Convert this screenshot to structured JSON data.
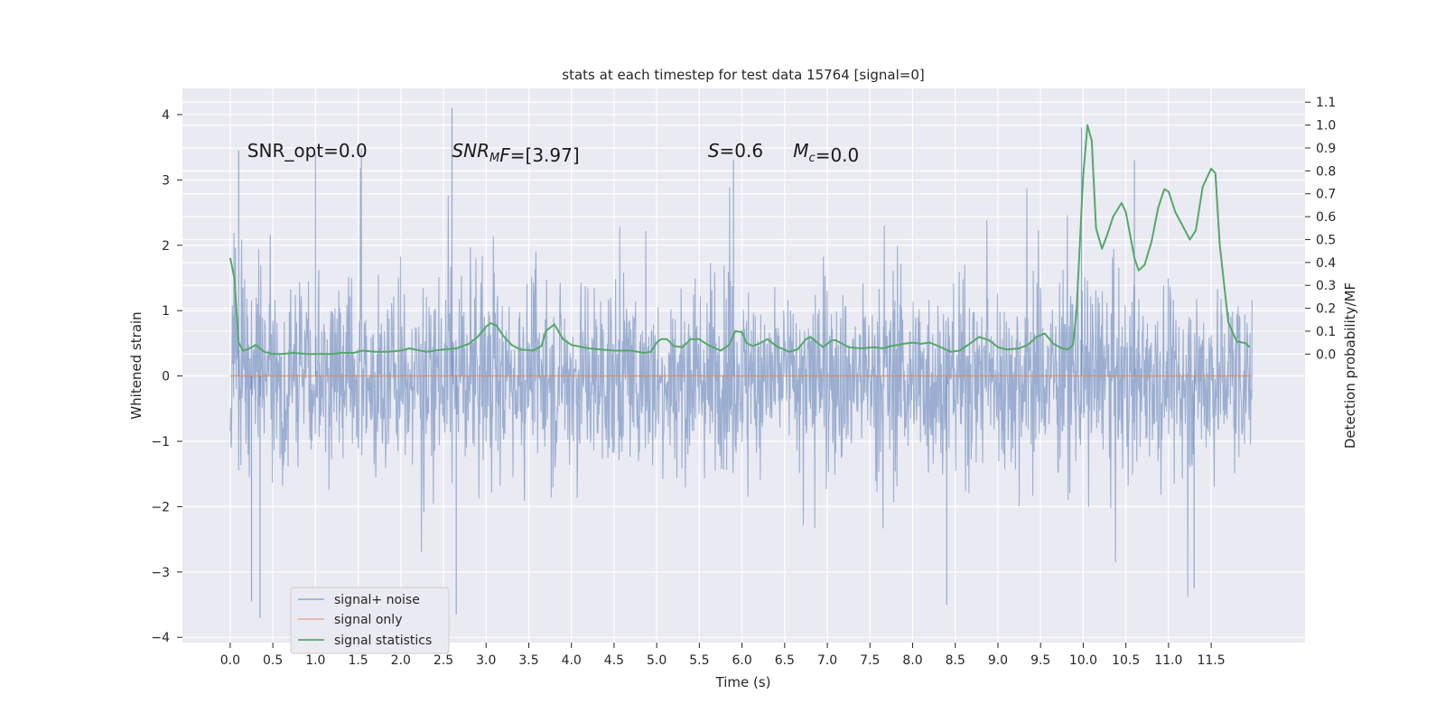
{
  "chart_data": {
    "type": "line",
    "title": "stats at each timestep for test data 15764 [signal=0]",
    "xlabel": "Time (s)",
    "ylabel": "Whitened strain",
    "ylabel_right": "Detection probability/MF",
    "xlim": [
      -0.56,
      12.6
    ],
    "ylim": [
      -4.08,
      4.4
    ],
    "ylim_right": [
      -1.26,
      1.16
    ],
    "x_ticks": [
      0.0,
      0.5,
      1.0,
      1.5,
      2.0,
      2.5,
      3.0,
      3.5,
      4.0,
      4.5,
      5.0,
      5.5,
      6.0,
      6.5,
      7.0,
      7.5,
      8.0,
      8.5,
      9.0,
      9.5,
      10.0,
      10.5,
      11.0,
      11.5
    ],
    "x_tick_labels": [
      "0.0",
      "0.5",
      "1.0",
      "1.5",
      "2.0",
      "2.5",
      "3.0",
      "3.5",
      "4.0",
      "4.5",
      "5.0",
      "5.5",
      "6.0",
      "6.5",
      "7.0",
      "7.5",
      "8.0",
      "8.5",
      "9.0",
      "9.5",
      "10.0",
      "10.5",
      "11.0",
      "11.5"
    ],
    "y_ticks": [
      -4,
      -3,
      -2,
      -1,
      0,
      1,
      2,
      3,
      4
    ],
    "y_tick_labels": [
      "−4",
      "−3",
      "−2",
      "−1",
      "0",
      "1",
      "2",
      "3",
      "4"
    ],
    "y_right_ticks": [
      0.0,
      0.1,
      0.2,
      0.3,
      0.4,
      0.5,
      0.6,
      0.7,
      0.8,
      0.9,
      1.0,
      1.1
    ],
    "y_right_tick_labels": [
      "0.0",
      "0.1",
      "0.2",
      "0.3",
      "0.4",
      "0.5",
      "0.6",
      "0.7",
      "0.8",
      "0.9",
      "1.0",
      "1.1"
    ],
    "grid": true,
    "legend_position": "lower-left",
    "series": [
      {
        "name": "signal+ noise",
        "color": "#4c72b0",
        "axis": "left",
        "description_range": [
          -3.7,
          4.1
        ],
        "notable_spikes": [
          {
            "x": 0.1,
            "y": 3.45
          },
          {
            "x": 1.0,
            "y": 3.4
          },
          {
            "x": 2.6,
            "y": 4.1
          },
          {
            "x": 5.9,
            "y": 3.3
          },
          {
            "x": 9.98,
            "y": 3.8
          },
          {
            "x": 10.6,
            "y": 3.3
          },
          {
            "x": 0.25,
            "y": -3.45
          },
          {
            "x": 0.35,
            "y": -3.7
          },
          {
            "x": 2.65,
            "y": -3.65
          },
          {
            "x": 8.4,
            "y": -3.5
          },
          {
            "x": 11.3,
            "y": -3.25
          }
        ]
      },
      {
        "name": "signal only",
        "color": "#dd8452",
        "axis": "left",
        "x": [
          0.0,
          11.98
        ],
        "y": [
          0.0,
          0.0
        ]
      },
      {
        "name": "signal statistics",
        "color": "#55a868",
        "axis": "right",
        "x": [
          0.0,
          0.05,
          0.1,
          0.15,
          0.2,
          0.3,
          0.4,
          0.5,
          0.6,
          0.75,
          0.9,
          1.0,
          1.2,
          1.3,
          1.45,
          1.55,
          1.7,
          1.85,
          2.0,
          2.1,
          2.3,
          2.5,
          2.65,
          2.8,
          2.9,
          3.0,
          3.05,
          3.12,
          3.2,
          3.3,
          3.4,
          3.55,
          3.65,
          3.7,
          3.8,
          3.9,
          4.0,
          4.2,
          4.5,
          4.7,
          4.85,
          4.93,
          5.0,
          5.05,
          5.12,
          5.2,
          5.3,
          5.4,
          5.5,
          5.6,
          5.75,
          5.85,
          5.92,
          6.0,
          6.05,
          6.12,
          6.2,
          6.3,
          6.4,
          6.55,
          6.65,
          6.75,
          6.8,
          6.95,
          7.05,
          7.1,
          7.25,
          7.4,
          7.55,
          7.65,
          7.75,
          7.9,
          8.0,
          8.1,
          8.2,
          8.3,
          8.45,
          8.55,
          8.65,
          8.78,
          8.9,
          9.0,
          9.1,
          9.25,
          9.35,
          9.45,
          9.55,
          9.65,
          9.75,
          9.82,
          9.88,
          9.92,
          10.0,
          10.05,
          10.1,
          10.15,
          10.22,
          10.28,
          10.35,
          10.45,
          10.5,
          10.6,
          10.65,
          10.72,
          10.8,
          10.88,
          10.95,
          11.0,
          11.08,
          11.18,
          11.25,
          11.32,
          11.4,
          11.5,
          11.55,
          11.6,
          11.7,
          11.8,
          11.9,
          11.95
        ],
        "y": [
          0.42,
          0.33,
          0.05,
          0.015,
          0.02,
          0.04,
          0.01,
          0.0,
          0.0,
          0.005,
          0.0,
          0.0,
          0.0,
          0.005,
          0.005,
          0.015,
          0.01,
          0.01,
          0.015,
          0.025,
          0.01,
          0.02,
          0.025,
          0.045,
          0.075,
          0.12,
          0.135,
          0.125,
          0.08,
          0.04,
          0.02,
          0.015,
          0.035,
          0.1,
          0.13,
          0.065,
          0.04,
          0.025,
          0.015,
          0.015,
          0.005,
          0.01,
          0.05,
          0.065,
          0.065,
          0.035,
          0.03,
          0.065,
          0.065,
          0.04,
          0.015,
          0.04,
          0.1,
          0.095,
          0.05,
          0.035,
          0.045,
          0.065,
          0.035,
          0.01,
          0.02,
          0.065,
          0.075,
          0.03,
          0.06,
          0.06,
          0.03,
          0.025,
          0.03,
          0.025,
          0.035,
          0.045,
          0.05,
          0.045,
          0.05,
          0.035,
          0.01,
          0.015,
          0.04,
          0.075,
          0.06,
          0.03,
          0.02,
          0.025,
          0.04,
          0.075,
          0.09,
          0.045,
          0.025,
          0.02,
          0.04,
          0.18,
          0.78,
          1.0,
          0.93,
          0.55,
          0.46,
          0.52,
          0.6,
          0.66,
          0.62,
          0.42,
          0.365,
          0.39,
          0.49,
          0.64,
          0.72,
          0.71,
          0.62,
          0.55,
          0.5,
          0.54,
          0.73,
          0.81,
          0.79,
          0.48,
          0.14,
          0.055,
          0.048,
          0.03
        ]
      }
    ],
    "annotations": [
      {
        "id": "snr_opt",
        "x": 0.2,
        "y": 3.35,
        "parts": [
          {
            "text": "SNR_opt=0.0",
            "italic": false
          }
        ]
      },
      {
        "id": "snr_mf",
        "x": 2.6,
        "y": 3.35,
        "parts": [
          {
            "text": "SNR",
            "italic": true
          },
          {
            "text": "M",
            "italic": true,
            "sub": true
          },
          {
            "text": "F",
            "italic": true
          },
          {
            "text": "=[3.97]",
            "italic": false
          }
        ]
      },
      {
        "id": "s",
        "x": 5.6,
        "y": 3.35,
        "parts": [
          {
            "text": "S",
            "italic": true
          },
          {
            "text": "=0.6",
            "italic": false
          }
        ]
      },
      {
        "id": "mc",
        "x": 6.6,
        "y": 3.35,
        "parts": [
          {
            "text": "M",
            "italic": true
          },
          {
            "text": "c",
            "italic": true,
            "sub": true
          },
          {
            "text": "=0.0",
            "italic": false
          }
        ]
      }
    ]
  }
}
